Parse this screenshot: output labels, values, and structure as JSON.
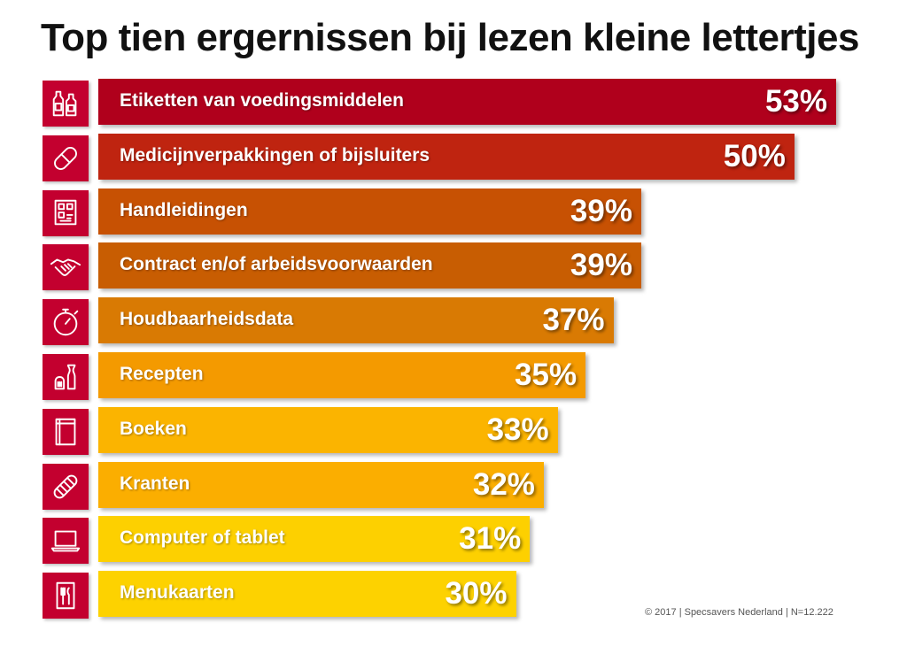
{
  "title": "Top tien ergernissen bij lezen kleine lettertjes",
  "footnote": "© 2017 | Specsavers Nederland | N=12.222",
  "icon_color": "#c3002f",
  "chart_data": {
    "type": "bar",
    "orientation": "horizontal",
    "title": "Top tien ergernissen bij lezen kleine lettertjes",
    "xlabel": "",
    "ylabel": "",
    "grid": false,
    "value_suffix": "%",
    "categories": [
      "Etiketten van voedingsmiddelen",
      "Medicijnverpakkingen of bijsluiters",
      "Handleidingen",
      "Contract en/of arbeidsvoorwaarden",
      "Houdbaarheidsdata",
      "Recepten",
      "Boeken",
      "Kranten",
      "Computer of tablet",
      "Menukaarten"
    ],
    "values": [
      53,
      50,
      39,
      39,
      37,
      35,
      33,
      32,
      31,
      30
    ],
    "value_labels": [
      "53%",
      "50%",
      "39%",
      "39%",
      "37%",
      "35%",
      "33%",
      "32%",
      "31%",
      "30%"
    ],
    "bar_colors": [
      "#b0001c",
      "#bf2410",
      "#c75103",
      "#c85d02",
      "#d97a03",
      "#f49a00",
      "#fbb400",
      "#fbae00",
      "#fdd000",
      "#fdd200"
    ],
    "icons": [
      "bottles-icon",
      "pill-icon",
      "manual-icon",
      "handshake-icon",
      "stopwatch-icon",
      "salt-pepper-icon",
      "book-icon",
      "newspaper-icon",
      "laptop-icon",
      "menu-card-icon"
    ]
  }
}
